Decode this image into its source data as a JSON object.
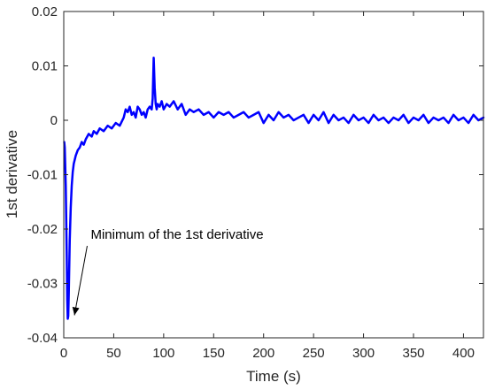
{
  "chart_data": {
    "type": "line",
    "title": "",
    "xlabel": "Time (s)",
    "ylabel": "1st derivative",
    "xlim": [
      0,
      420
    ],
    "ylim": [
      -0.04,
      0.02
    ],
    "grid": false,
    "x_ticks": [
      0,
      50,
      100,
      150,
      200,
      250,
      300,
      350,
      400
    ],
    "x_tick_labels": [
      "0",
      "50",
      "100",
      "150",
      "200",
      "250",
      "300",
      "350",
      "400"
    ],
    "y_ticks": [
      -0.04,
      -0.03,
      -0.02,
      -0.01,
      0,
      0.01,
      0.02
    ],
    "y_tick_labels": [
      "-0.04",
      "-0.03",
      "-0.02",
      "-0.01",
      "0",
      "0.01",
      "0.02"
    ],
    "series": [
      {
        "color": "#0000ff",
        "x": [
          0.5,
          1,
          2,
          3,
          3.5,
          4,
          4.5,
          5,
          5.5,
          6,
          7,
          8,
          9,
          10,
          12,
          14,
          16,
          18,
          20,
          22,
          25,
          28,
          30,
          33,
          36,
          40,
          44,
          48,
          52,
          56,
          60,
          62,
          64,
          66,
          68,
          70,
          72,
          74,
          76,
          78,
          80,
          82,
          84,
          86,
          88,
          89,
          90,
          91,
          92,
          93,
          94,
          96,
          98,
          100,
          103,
          106,
          110,
          114,
          118,
          122,
          126,
          130,
          135,
          140,
          145,
          150,
          155,
          160,
          165,
          170,
          175,
          180,
          185,
          190,
          195,
          200,
          205,
          210,
          215,
          220,
          225,
          230,
          235,
          240,
          245,
          250,
          255,
          260,
          265,
          270,
          275,
          280,
          285,
          290,
          295,
          300,
          305,
          310,
          315,
          320,
          325,
          330,
          335,
          340,
          345,
          350,
          355,
          360,
          365,
          370,
          375,
          380,
          385,
          390,
          395,
          400,
          405,
          410,
          415,
          420
        ],
        "y": [
          -0.004,
          -0.005,
          -0.012,
          -0.025,
          -0.033,
          -0.0365,
          -0.036,
          -0.032,
          -0.027,
          -0.022,
          -0.016,
          -0.012,
          -0.0095,
          -0.008,
          -0.0065,
          -0.0055,
          -0.005,
          -0.004,
          -0.0045,
          -0.0035,
          -0.0025,
          -0.003,
          -0.002,
          -0.0025,
          -0.0015,
          -0.002,
          -0.001,
          -0.0015,
          -0.0005,
          -0.001,
          0.0005,
          0.002,
          0.0015,
          0.0025,
          0.001,
          0.0015,
          0.0005,
          0.0025,
          0.002,
          0.001,
          0.0015,
          0.0005,
          0.002,
          0.0025,
          0.002,
          0.004,
          0.0115,
          0.006,
          0.003,
          0.002,
          0.003,
          0.0025,
          0.0035,
          0.002,
          0.003,
          0.0025,
          0.0035,
          0.002,
          0.003,
          0.001,
          0.002,
          0.0015,
          0.002,
          0.001,
          0.0015,
          0.0005,
          0.0015,
          0.001,
          0.0015,
          0.0005,
          0.001,
          0.0015,
          0.0005,
          0.001,
          0.0015,
          -0.0005,
          0.001,
          0.0,
          0.0015,
          0.0005,
          0.001,
          0.0,
          0.0005,
          0.001,
          -0.0005,
          0.001,
          0.0,
          0.0015,
          -0.0005,
          0.001,
          0.0,
          0.0005,
          -0.0005,
          0.001,
          0.0,
          0.0005,
          -0.0005,
          0.001,
          0.0,
          0.0005,
          -0.0005,
          0.0005,
          0.0,
          0.001,
          -0.0005,
          0.0005,
          0.0,
          0.001,
          -0.0005,
          0.0005,
          0.0,
          0.0005,
          -0.0005,
          0.001,
          0.0,
          0.0005,
          -0.0005,
          0.001,
          0.0,
          0.0005
        ]
      }
    ],
    "annotation": {
      "text": "Minimum of the 1st derivative",
      "point": [
        4.5,
        -0.0365
      ],
      "text_anchor": [
        27,
        -0.0218
      ]
    }
  }
}
